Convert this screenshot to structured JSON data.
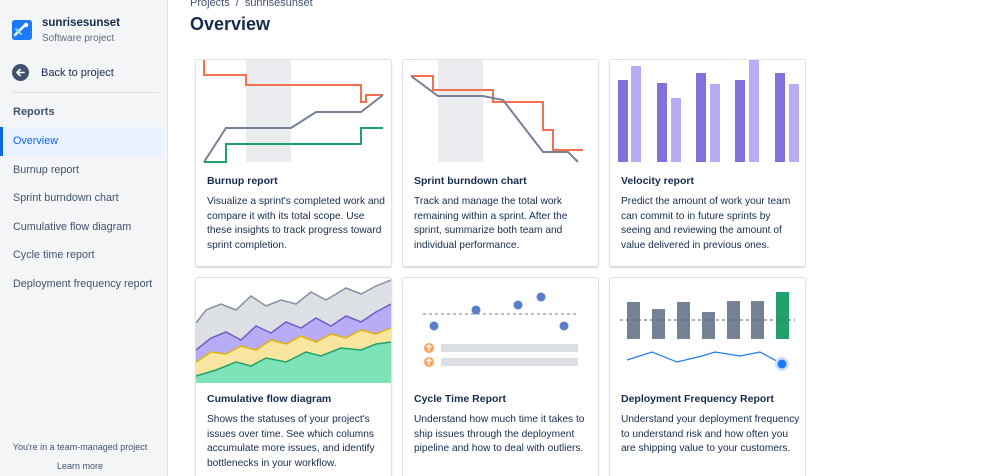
{
  "project": {
    "name": "sunrisesunset",
    "type": "Software project"
  },
  "sidebar": {
    "back_label": "Back to project",
    "section_title": "Reports",
    "items": [
      {
        "label": "Overview"
      },
      {
        "label": "Burnup report"
      },
      {
        "label": "Sprint burndown chart"
      },
      {
        "label": "Cumulative flow diagram"
      },
      {
        "label": "Cycle time report"
      },
      {
        "label": "Deployment frequency report"
      }
    ],
    "footer_text": "You're in a team-managed project",
    "footer_link": "Learn more"
  },
  "breadcrumb": [
    "Projects",
    "/",
    "sunrisesunset"
  ],
  "page_title": "Overview",
  "cards": [
    {
      "title": "Burnup report",
      "description": "Visualize a sprint's completed work and compare it with its total scope. Use these insights to track progress toward sprint completion."
    },
    {
      "title": "Sprint burndown chart",
      "description": "Track and manage the total work remaining within a sprint. After the sprint, summarize both team and individual performance."
    },
    {
      "title": "Velocity report",
      "description": "Predict the amount of work your team can commit to in future sprints by seeing and reviewing the amount of value delivered in previous ones."
    },
    {
      "title": "Cumulative flow diagram",
      "description": "Shows the statuses of your project's issues over time. See which columns accumulate more issues, and identify bottlenecks in your workflow."
    },
    {
      "title": "Cycle Time Report",
      "description": "Understand how much time it takes to ship issues through the deployment pipeline and how to deal with outliers."
    },
    {
      "title": "Deployment Frequency Report",
      "description": "Understand your deployment frequency to understand risk and how often you are shipping value to your customers."
    }
  ],
  "colors": {
    "accent": "#0c66e4",
    "orange": "#f4704f",
    "green": "#22a06b",
    "gray_line": "#758195",
    "purple_dark": "#8270db",
    "purple_light": "#b8acf6",
    "yellow": "#f8e6a0",
    "mint": "#7ee2b8",
    "bar_gray": "#758195",
    "blue_dot": "#5b7fc7"
  }
}
